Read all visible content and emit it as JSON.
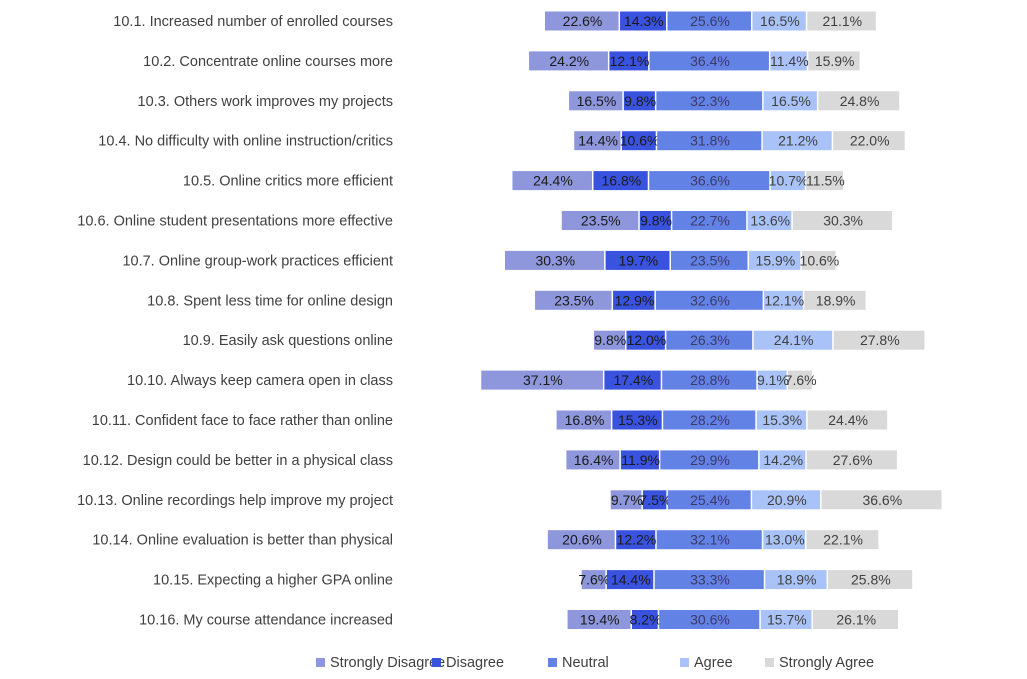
{
  "chart_data": {
    "type": "bar",
    "orientation": "horizontal",
    "stacked": "diverging",
    "title": "",
    "xlabel": "",
    "ylabel": "",
    "grid": false,
    "legend_position": "bottom",
    "categories": [
      "10.1. Increased number of enrolled courses",
      "10.2. Concentrate online courses more",
      "10.3. Others work improves my projects",
      "10.4. No difficulty with online instruction/critics",
      "10.5. Online critics more efficient",
      "10.6. Online student presentations more effective",
      "10.7. Online group-work practices efficient",
      "10.8. Spent less time for online design",
      "10.9. Easily ask questions online",
      "10.10. Always keep camera open in class",
      "10.11. Confident face to face rather than online",
      "10.12. Design could be better in a physical class",
      "10.13. Online recordings help improve my project",
      "10.14. Online evaluation is better than physical",
      "10.15. Expecting a higher GPA online",
      "10.16. My course attendance increased"
    ],
    "series": [
      {
        "name": "Strongly Disagree",
        "color": "#8e96dc",
        "label_color": "#1a1a1a",
        "values": [
          22.6,
          24.2,
          16.5,
          14.4,
          24.4,
          23.5,
          30.3,
          23.5,
          9.8,
          37.1,
          16.8,
          16.4,
          9.7,
          20.6,
          7.6,
          19.4
        ],
        "labels": [
          "22.6%",
          "24.2%",
          "16.5%",
          "14.4%",
          "24.4%",
          "23.5%",
          "30.3%",
          "23.5%",
          "9.8%",
          "37.1%",
          "16.8%",
          "16.4%",
          "9.7%",
          "20.6%",
          "7.6%",
          "19.4%"
        ]
      },
      {
        "name": "Disagree",
        "color": "#3a53de",
        "label_color": "#1a1a1a",
        "values": [
          14.3,
          12.1,
          9.8,
          10.6,
          16.8,
          9.8,
          19.7,
          12.9,
          12.0,
          17.4,
          15.3,
          11.9,
          7.5,
          12.2,
          14.4,
          8.2
        ],
        "labels": [
          "14.3%",
          "12.1%",
          "9.8%",
          "10.6%",
          "16.8%",
          "9.8%",
          "19.7%",
          "12.9%",
          "12.0%",
          "17.4%",
          "15.3%",
          "11.9%",
          "7.5%",
          "12.2%",
          "14.4%",
          "8.2%"
        ]
      },
      {
        "name": "Neutral",
        "color": "#6382e6",
        "label_color": "#3a3a66",
        "values": [
          25.6,
          36.4,
          32.3,
          31.8,
          36.6,
          22.7,
          23.5,
          32.6,
          26.3,
          28.8,
          28.2,
          29.9,
          25.4,
          32.1,
          33.3,
          30.6
        ],
        "labels": [
          "25.6%",
          "36.4%",
          "32.3%",
          "31.8%",
          "36.6%",
          "22.7%",
          "23.5%",
          "32.6%",
          "26.3%",
          "28.8%",
          "28.2%",
          "29.9%",
          "25.4%",
          "32.1%",
          "33.3%",
          "30.6%"
        ]
      },
      {
        "name": "Agree",
        "color": "#a9c2f7",
        "label_color": "#404040",
        "values": [
          16.5,
          11.4,
          16.5,
          21.2,
          10.7,
          13.6,
          15.9,
          12.1,
          24.1,
          9.1,
          15.3,
          14.2,
          20.9,
          13.0,
          18.9,
          15.7
        ],
        "labels": [
          "16.5%",
          "11.4%",
          "16.5%",
          "21.2%",
          "10.7%",
          "13.6%",
          "15.9%",
          "12.1%",
          "24.1%",
          "9.1%",
          "15.3%",
          "14.2%",
          "20.9%",
          "13.0%",
          "18.9%",
          "15.7%"
        ]
      },
      {
        "name": "Strongly Agree",
        "color": "#d9d9d9",
        "label_color": "#404040",
        "values": [
          21.1,
          15.9,
          24.8,
          22.0,
          11.5,
          30.3,
          10.6,
          18.9,
          27.8,
          7.6,
          24.4,
          27.6,
          36.6,
          22.1,
          25.8,
          26.1
        ],
        "labels": [
          "21.1%",
          "15.9%",
          "24.8%",
          "22.0%",
          "11.5%",
          "30.3%",
          "10.6%",
          "18.9%",
          "27.8%",
          "7.6%",
          "24.4%",
          "27.6%",
          "36.6%",
          "22.1%",
          "25.8%",
          "26.1%"
        ]
      }
    ]
  }
}
